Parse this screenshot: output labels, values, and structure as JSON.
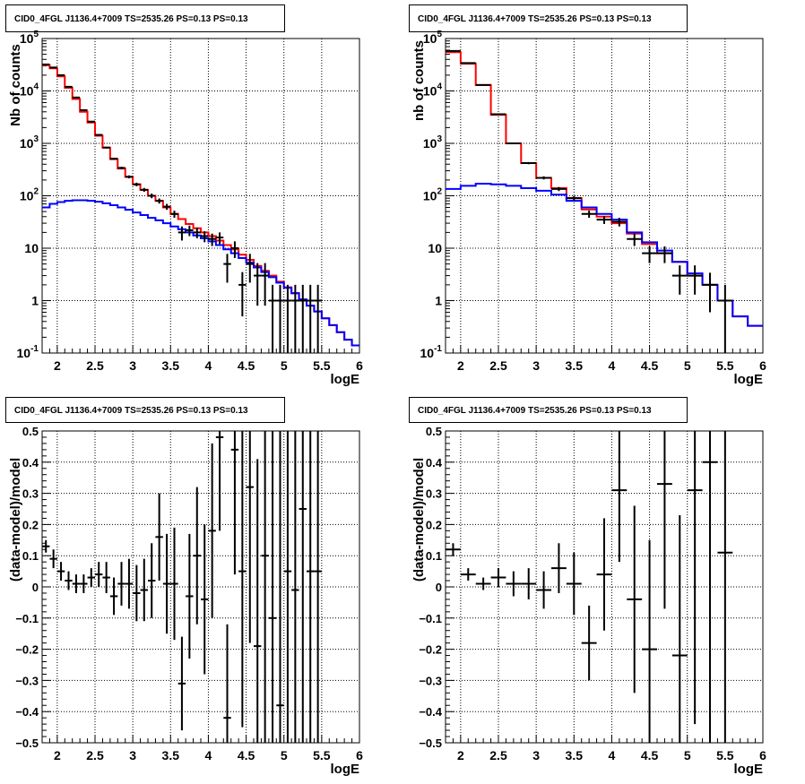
{
  "chart_data": [
    {
      "type": "line",
      "title": "CID0_4FGL J1136.4+7009 TS=2535.26 PS=0.13 PS=0.13",
      "xlabel": "logE",
      "ylabel": "Nb of counts",
      "yscale": "log",
      "xlim": [
        1.8,
        6.0
      ],
      "ylim": [
        0.1,
        100000
      ],
      "xticks": [
        "2",
        "2.5",
        "3",
        "3.5",
        "4",
        "4.5",
        "5",
        "5.5",
        "6"
      ],
      "yticks": [
        "10-1",
        "1",
        "10",
        "102",
        "103",
        "104",
        "105"
      ],
      "grid": true,
      "series": [
        {
          "color": "#ff0000",
          "edges": [
            1.8,
            1.9,
            2.0,
            2.1,
            2.2,
            2.3,
            2.4,
            2.5,
            2.6,
            2.7,
            2.8,
            2.9,
            3.0,
            3.1,
            3.2,
            3.3,
            3.4,
            3.5,
            3.6,
            3.7,
            3.8,
            3.9,
            4.0,
            4.1,
            4.2,
            4.3,
            4.4,
            4.5,
            4.6,
            4.7,
            4.8,
            4.9,
            5.0,
            5.1,
            5.2,
            5.3,
            5.4,
            5.5,
            5.6,
            5.7,
            5.8,
            5.9,
            6.0
          ],
          "values": [
            31000,
            27000,
            19000,
            11500,
            7000,
            4000,
            2500,
            1400,
            830,
            500,
            330,
            230,
            165,
            130,
            100,
            80,
            60,
            45,
            36,
            29,
            24,
            20,
            17,
            14,
            11.5,
            9.5,
            7.5,
            6,
            4.6,
            3.7,
            3.0,
            2.3,
            1.8,
            1.4,
            1.05,
            0.8,
            0.62,
            0.46,
            0.34,
            0.25,
            0.18,
            0.14
          ]
        },
        {
          "color": "#0000ff",
          "edges": [
            1.8,
            1.9,
            2.0,
            2.1,
            2.2,
            2.3,
            2.4,
            2.5,
            2.6,
            2.7,
            2.8,
            2.9,
            3.0,
            3.1,
            3.2,
            3.3,
            3.4,
            3.5,
            3.6,
            3.7,
            3.8,
            3.9,
            4.0,
            4.1,
            4.2,
            4.3,
            4.4,
            4.5,
            4.6,
            4.7,
            4.8,
            4.9,
            5.0,
            5.1,
            5.2,
            5.3,
            5.4,
            5.5,
            5.6,
            5.7,
            5.8,
            5.9,
            6.0
          ],
          "values": [
            60,
            70,
            76,
            80,
            82,
            82,
            80,
            77,
            72,
            66,
            60,
            54,
            48,
            43,
            38,
            34,
            30,
            26,
            23,
            20,
            17.5,
            15.5,
            13.5,
            11.5,
            9.5,
            8,
            6.5,
            5.3,
            4.3,
            3.5,
            2.8,
            2.2,
            1.75,
            1.38,
            1.05,
            0.8,
            0.62,
            0.46,
            0.34,
            0.25,
            0.18,
            0.14
          ]
        },
        {
          "color": "#000000",
          "style": "points-errorbars",
          "x": [
            1.85,
            1.95,
            2.05,
            2.15,
            2.25,
            2.35,
            2.45,
            2.55,
            2.65,
            2.75,
            2.85,
            2.95,
            3.05,
            3.15,
            3.25,
            3.35,
            3.45,
            3.55,
            3.65,
            3.75,
            3.85,
            3.95,
            4.05,
            4.15,
            4.25,
            4.35,
            4.45,
            4.55,
            4.65,
            4.75,
            4.85,
            4.95,
            5.05,
            5.15,
            5.25,
            5.35,
            5.45
          ],
          "y": [
            32000,
            28000,
            20000,
            12000,
            7500,
            4300,
            2600,
            1450,
            830,
            510,
            340,
            230,
            165,
            130,
            100,
            80,
            62,
            45,
            20,
            22,
            20,
            17,
            15,
            16,
            5,
            10,
            2,
            5,
            3,
            3,
            1,
            1,
            1,
            1,
            1,
            1,
            1
          ],
          "yerr_low": [
            180,
            170,
            140,
            110,
            87,
            66,
            51,
            38,
            29,
            23,
            18,
            15,
            13,
            11,
            10,
            9,
            8,
            7,
            6,
            5,
            4.5,
            4,
            4,
            4,
            2.8,
            3.5,
            1.5,
            2.8,
            2.2,
            2.2,
            1,
            1,
            1,
            1,
            1,
            1,
            1
          ],
          "yerr_high": [
            180,
            170,
            140,
            110,
            87,
            66,
            51,
            38,
            29,
            23,
            18,
            15,
            13,
            11,
            10,
            9,
            8,
            7,
            6,
            5,
            4.5,
            4,
            4,
            4,
            2.8,
            3.5,
            1.5,
            2.8,
            2.2,
            2.2,
            1,
            1,
            1,
            1,
            1,
            1,
            1
          ]
        }
      ]
    },
    {
      "type": "line",
      "title": "CID0_4FGL J1136.4+7009 TS=2535.26 PS=0.13 PS=0.13",
      "xlabel": "logE",
      "ylabel": "nb of counts",
      "yscale": "log",
      "xlim": [
        1.8,
        6.0
      ],
      "ylim": [
        0.1,
        100000
      ],
      "xticks": [
        "2",
        "2.5",
        "3",
        "3.5",
        "4",
        "4.5",
        "5",
        "5.5",
        "6"
      ],
      "yticks": [
        "10-1",
        "1",
        "10",
        "102",
        "103",
        "104",
        "105"
      ],
      "grid": true,
      "series": [
        {
          "color": "#ff0000",
          "edges": [
            1.8,
            2.0,
            2.2,
            2.4,
            2.6,
            2.8,
            3.0,
            3.2,
            3.4,
            3.6,
            3.8,
            4.0,
            4.2,
            4.4,
            4.6,
            4.8,
            5.0,
            5.2,
            5.4,
            5.6,
            5.8,
            6.0
          ],
          "values": [
            55000,
            33000,
            13000,
            3500,
            1000,
            420,
            220,
            140,
            90,
            55,
            40,
            30,
            19,
            12,
            8,
            5.5,
            3,
            2,
            1,
            0.5,
            0.33
          ]
        },
        {
          "color": "#0000ff",
          "edges": [
            1.8,
            2.0,
            2.2,
            2.4,
            2.6,
            2.8,
            3.0,
            3.2,
            3.4,
            3.6,
            3.8,
            4.0,
            4.2,
            4.4,
            4.6,
            4.8,
            5.0,
            5.2,
            5.4,
            5.6,
            5.8,
            6.0
          ],
          "values": [
            135,
            155,
            170,
            165,
            155,
            140,
            125,
            105,
            80,
            60,
            45,
            35,
            20,
            13,
            9,
            5.5,
            3.3,
            2,
            1,
            0.5,
            0.33
          ]
        },
        {
          "color": "#000000",
          "style": "points-errorbars",
          "x": [
            1.9,
            2.1,
            2.3,
            2.5,
            2.7,
            2.9,
            3.1,
            3.3,
            3.5,
            3.7,
            3.9,
            4.1,
            4.3,
            4.5,
            4.7,
            4.9,
            5.1,
            5.3,
            5.5
          ],
          "y": [
            58000,
            34000,
            13000,
            3600,
            1000,
            420,
            220,
            135,
            90,
            45,
            35,
            32,
            15,
            8,
            8,
            3,
            3,
            2,
            1
          ],
          "yerr_low": [
            240,
            185,
            114,
            60,
            32,
            20,
            15,
            12,
            9,
            7,
            6,
            6,
            4,
            2.8,
            2.8,
            1.7,
            1.7,
            1.4,
            1
          ],
          "yerr_high": [
            240,
            185,
            114,
            60,
            32,
            20,
            15,
            12,
            9,
            7,
            6,
            6,
            4,
            2.8,
            2.8,
            1.7,
            1.7,
            1.4,
            1
          ]
        }
      ]
    },
    {
      "type": "scatter",
      "title": "CID0_4FGL J1136.4+7009 TS=2535.26 PS=0.13 PS=0.13",
      "xlabel": "logE",
      "ylabel": "(data-model)/model",
      "xlim": [
        1.8,
        6.0
      ],
      "ylim": [
        -0.5,
        0.5
      ],
      "xticks": [
        "2",
        "2.5",
        "3",
        "3.5",
        "4",
        "4.5",
        "5",
        "5.5",
        "6"
      ],
      "yticks": [
        "-0.5",
        "-0.4",
        "-0.3",
        "-0.2",
        "-0.1",
        "0",
        "0.1",
        "0.2",
        "0.3",
        "0.4",
        "0.5"
      ],
      "grid": true,
      "series": [
        {
          "color": "#000000",
          "style": "points-errorbars",
          "x": [
            1.85,
            1.95,
            2.05,
            2.15,
            2.25,
            2.35,
            2.45,
            2.55,
            2.65,
            2.75,
            2.85,
            2.95,
            3.05,
            3.15,
            3.25,
            3.35,
            3.45,
            3.55,
            3.65,
            3.75,
            3.85,
            3.95,
            4.05,
            4.15,
            4.25,
            4.35,
            4.45,
            4.55,
            4.65,
            4.75,
            4.85,
            4.95,
            5.05,
            5.15,
            5.25,
            5.35,
            5.45
          ],
          "y": [
            0.13,
            0.09,
            0.05,
            0.02,
            0.01,
            0.01,
            0.03,
            0.04,
            0.03,
            -0.03,
            0.01,
            0.01,
            -0.02,
            -0.01,
            0.02,
            0.16,
            0.01,
            0.01,
            -0.31,
            -0.03,
            0.1,
            -0.04,
            0.18,
            0.48,
            -0.42,
            0.44,
            0.05,
            0.32,
            -0.19,
            0.1,
            -0.1,
            -0.38,
            0.05,
            -0.01,
            0.25,
            0.05,
            0.05
          ],
          "yerr": [
            0.02,
            0.03,
            0.03,
            0.03,
            0.03,
            0.03,
            0.03,
            0.04,
            0.05,
            0.06,
            0.07,
            0.08,
            0.09,
            0.1,
            0.12,
            0.14,
            0.16,
            0.18,
            0.15,
            0.2,
            0.22,
            0.24,
            0.28,
            0.3,
            0.3,
            0.4,
            0.5,
            0.5,
            0.6,
            0.7,
            0.9,
            1,
            1,
            1,
            1,
            1,
            1
          ]
        }
      ]
    },
    {
      "type": "scatter",
      "title": "CID0_4FGL J1136.4+7009 TS=2535.26 PS=0.13 PS=0.13",
      "xlabel": "logE",
      "ylabel": "(data-model)/model",
      "xlim": [
        1.8,
        6.0
      ],
      "ylim": [
        -0.5,
        0.5
      ],
      "xticks": [
        "2",
        "2.5",
        "3",
        "3.5",
        "4",
        "4.5",
        "5",
        "5.5",
        "6"
      ],
      "yticks": [
        "-0.5",
        "-0.4",
        "-0.3",
        "-0.2",
        "-0.1",
        "0",
        "0.1",
        "0.2",
        "0.3",
        "0.4",
        "0.5"
      ],
      "grid": true,
      "series": [
        {
          "color": "#000000",
          "style": "points-errorbars",
          "x": [
            1.9,
            2.1,
            2.3,
            2.5,
            2.7,
            2.9,
            3.1,
            3.3,
            3.5,
            3.7,
            3.9,
            4.1,
            4.3,
            4.5,
            4.7,
            4.9,
            5.1,
            5.3,
            5.5
          ],
          "y": [
            0.12,
            0.04,
            0.01,
            0.03,
            0.01,
            0.01,
            -0.01,
            0.06,
            0.01,
            -0.18,
            0.04,
            0.31,
            -0.04,
            -0.2,
            0.33,
            -0.22,
            0.31,
            0.4,
            0.11
          ],
          "yerr": [
            0.02,
            0.02,
            0.02,
            0.03,
            0.04,
            0.05,
            0.06,
            0.08,
            0.1,
            0.12,
            0.18,
            0.23,
            0.3,
            0.35,
            0.4,
            0.45,
            0.75,
            0.9,
            1
          ]
        }
      ]
    }
  ]
}
